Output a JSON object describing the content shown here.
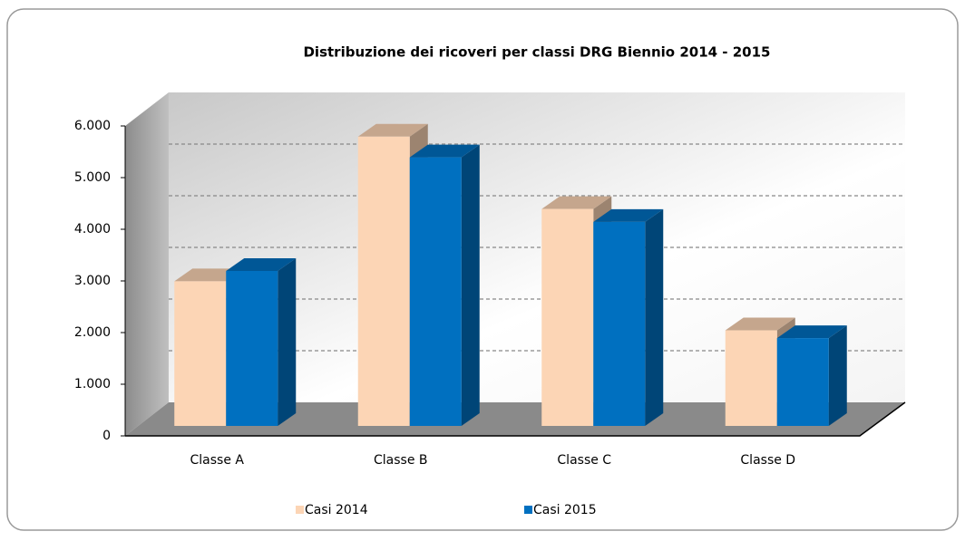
{
  "chart_data": {
    "type": "bar3d",
    "title": "Distribuzione dei ricoveri per classi DRG  Biennio 2014 - 2015",
    "categories": [
      "Classe A",
      "Classe B",
      "Classe C",
      "Classe D"
    ],
    "series": [
      {
        "name": "Casi 2014",
        "color": "#fcd5b5",
        "values": [
          2800,
          5600,
          4200,
          1850
        ]
      },
      {
        "name": "Casi 2015",
        "color": "#0070c0",
        "values": [
          3000,
          5200,
          3950,
          1700
        ]
      }
    ],
    "ylim": [
      0,
      6000
    ],
    "yticks": [
      0,
      {
        "value": 1000,
        "label": "1.000"
      },
      {
        "value": 2000,
        "label": "2.000"
      },
      {
        "value": 3000,
        "label": "3.000"
      },
      {
        "value": 4000,
        "label": "4.000"
      },
      {
        "value": 5000,
        "label": "5.000"
      },
      {
        "value": 6000,
        "label": "6.000"
      }
    ],
    "grid": true,
    "legend": "bottom"
  }
}
